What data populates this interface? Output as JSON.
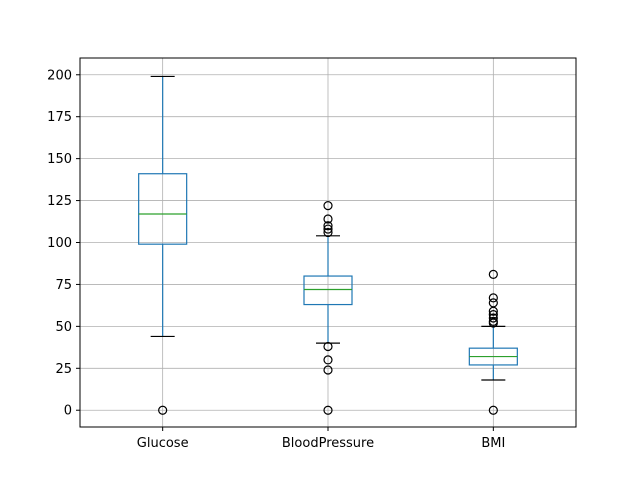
{
  "chart_data": {
    "type": "box",
    "title": "",
    "xlabel": "",
    "ylabel": "",
    "ylim": [
      -10,
      210
    ],
    "yticks": [
      0,
      25,
      50,
      75,
      100,
      125,
      150,
      175,
      200
    ],
    "ytick_labels": [
      "0",
      "25",
      "50",
      "75",
      "100",
      "125",
      "150",
      "175",
      "200"
    ],
    "grid": true,
    "categories": [
      "Glucose",
      "BloodPressure",
      "BMI"
    ],
    "boxes": [
      {
        "name": "Glucose",
        "whisker_low": 44,
        "q1": 99,
        "median": 117,
        "q3": 141,
        "whisker_high": 199,
        "outliers": [
          0
        ]
      },
      {
        "name": "BloodPressure",
        "whisker_low": 40,
        "q1": 63,
        "median": 72,
        "q3": 80,
        "whisker_high": 104,
        "outliers": [
          0,
          24,
          30,
          38,
          106,
          108,
          110,
          114,
          122
        ]
      },
      {
        "name": "BMI",
        "whisker_low": 18,
        "q1": 27,
        "median": 32,
        "q3": 37,
        "whisker_high": 50,
        "outliers": [
          0,
          52,
          53,
          55,
          57,
          59,
          64,
          67,
          81
        ]
      }
    ],
    "colors": {
      "box": "#1f77b4",
      "median": "#2ca02c",
      "caps": "#000000",
      "grid": "#b0b0b0",
      "outlier": "#000000"
    }
  }
}
